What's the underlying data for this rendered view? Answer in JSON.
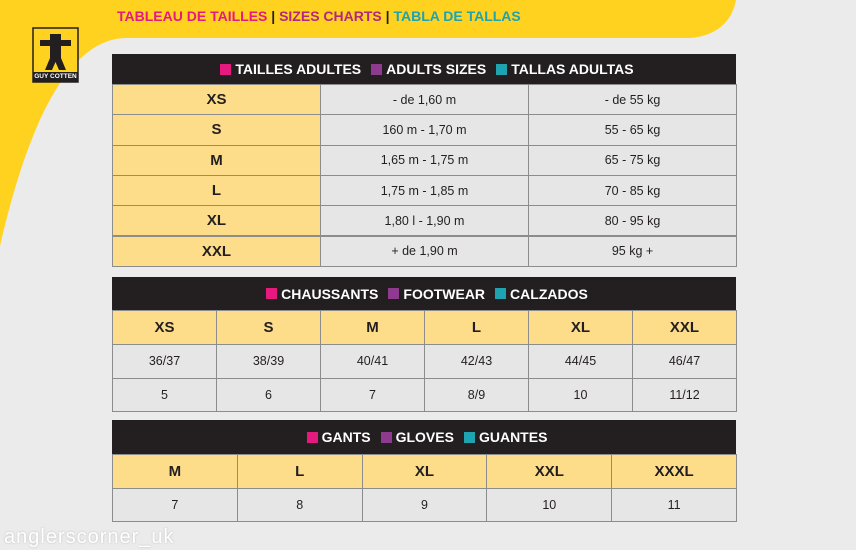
{
  "header": {
    "title_fr": "TABLEAU DE TAILLES",
    "separator": "|",
    "title_en": "SIZES CHARTS",
    "title_es": "TABLA DE TALLAS"
  },
  "logo": "GUY COTTEN",
  "adults": {
    "headings": [
      "TAILLES ADULTES",
      "ADULTS SIZES",
      "TALLAS ADULTAS"
    ],
    "rows": [
      [
        "XS",
        "- de 1,60 m",
        "- de 55 kg"
      ],
      [
        "S",
        "160 m - 1,70 m",
        "55 - 65 kg"
      ],
      [
        "M",
        "1,65 m - 1,75 m",
        "65 - 75 kg"
      ],
      [
        "L",
        "1,75 m - 1,85 m",
        "70 - 85 kg"
      ],
      [
        "XL",
        "1,80 l - 1,90 m",
        "80 - 95 kg"
      ],
      [
        "XXL",
        "+ de 1,90 m",
        "95 kg +"
      ]
    ]
  },
  "footwear": {
    "headings": [
      "CHAUSSANTS",
      "FOOTWEAR",
      "CALZADOS"
    ],
    "sizes": [
      "XS",
      "S",
      "M",
      "L",
      "XL",
      "XXL"
    ],
    "rows": [
      [
        "36/37",
        "38/39",
        "40/41",
        "42/43",
        "44/45",
        "46/47"
      ],
      [
        "5",
        "6",
        "7",
        "8/9",
        "10",
        "11/12"
      ]
    ]
  },
  "gloves": {
    "headings": [
      "GANTS",
      "GLOVES",
      "GUANTES"
    ],
    "sizes": [
      "M",
      "L",
      "XL",
      "XXL",
      "XXXL"
    ],
    "rows": [
      [
        "7",
        "8",
        "9",
        "10",
        "11"
      ]
    ]
  },
  "watermark": "anglerscorner_uk"
}
